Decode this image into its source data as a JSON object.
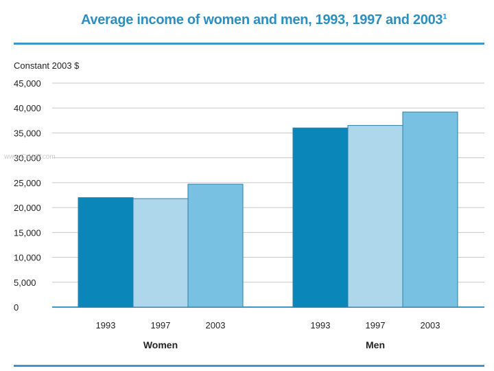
{
  "chart_data": {
    "type": "bar",
    "title": "Average income of women and men, 1993, 1997 and 2003",
    "title_note": "1",
    "ylabel": "Constant 2003 $",
    "ylim": [
      0,
      45000
    ],
    "yticks": [
      0,
      5000,
      10000,
      15000,
      20000,
      25000,
      30000,
      35000,
      40000,
      45000
    ],
    "ytick_labels": [
      "0",
      "5,000",
      "10,000",
      "15,000",
      "20,000",
      "25,000",
      "30,000",
      "35,000",
      "40,000",
      "45,000"
    ],
    "groups": [
      "Women",
      "Men"
    ],
    "categories": [
      "1993",
      "1997",
      "2003"
    ],
    "series": [
      {
        "group": "Women",
        "values": [
          22000,
          21800,
          24700
        ]
      },
      {
        "group": "Men",
        "values": [
          36000,
          36500,
          39200
        ]
      }
    ],
    "colors": {
      "1993": "#0a86b8",
      "1997": "#aed7ec",
      "2003": "#78c1e2"
    },
    "grid": true,
    "watermark": "www.CsLVP.com"
  }
}
